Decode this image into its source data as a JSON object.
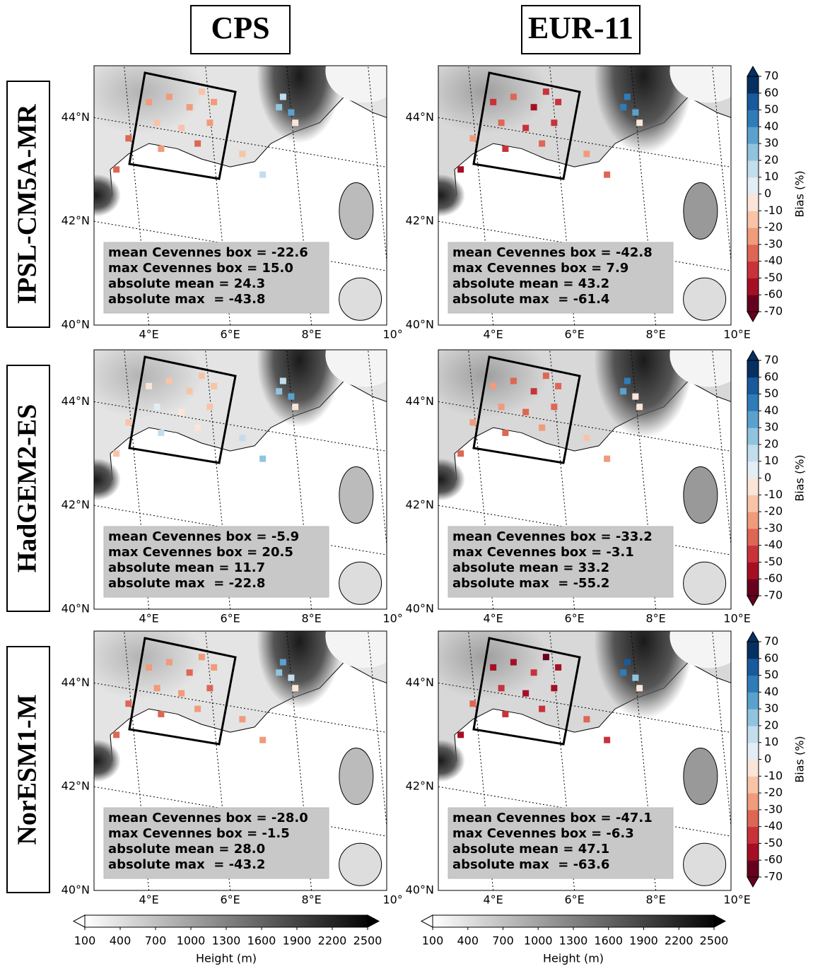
{
  "columns": [
    {
      "title": "CPS",
      "lon_ticks": [
        {
          "value": 4,
          "label": "4°E"
        },
        {
          "value": 6,
          "label": "6°E"
        },
        {
          "value": 8,
          "label": "8°E"
        },
        {
          "value": 10,
          "label": "10°"
        }
      ]
    },
    {
      "title": "EUR-11",
      "lon_ticks": [
        {
          "value": 4,
          "label": "4°E"
        },
        {
          "value": 6,
          "label": "6°E"
        },
        {
          "value": 8,
          "label": "8°E"
        },
        {
          "value": 10,
          "label": "10°E"
        }
      ]
    }
  ],
  "rows": [
    "IPSL-CM5A-MR",
    "HadGEM2-ES",
    "NorESM1-M"
  ],
  "lat_ticks": [
    {
      "value": 44,
      "label": "44°N"
    },
    {
      "value": 42,
      "label": "42°N"
    },
    {
      "value": 40,
      "label": "40°N"
    }
  ],
  "lon_lim": [
    2.65,
    9.85
  ],
  "lat_lim": [
    40,
    45
  ],
  "stations": {
    "lon": [
      4.0,
      4.5,
      5.0,
      5.3,
      5.6,
      4.2,
      4.8,
      5.5,
      3.5,
      4.3,
      5.2,
      3.2,
      6.3,
      6.8,
      7.2,
      7.5,
      7.3,
      7.6
    ],
    "lat": [
      44.3,
      44.4,
      44.2,
      44.5,
      44.3,
      43.9,
      43.8,
      43.9,
      43.6,
      43.4,
      43.5,
      43.0,
      43.3,
      42.9,
      44.2,
      44.1,
      44.4,
      43.9
    ]
  },
  "panels": [
    [
      {
        "stats": [
          "mean Cevennes box = -22.6",
          "max Cevennes box = 15.0",
          "absolute mean = 24.3",
          "absolute max  = -43.8"
        ],
        "bias": [
          -22,
          -25,
          -28,
          -18,
          -30,
          -15,
          -20,
          -24,
          -32,
          -28,
          -35,
          -38,
          -20,
          15,
          25,
          35,
          10,
          -5
        ]
      },
      {
        "stats": [
          "mean Cevennes box = -42.8",
          "max Cevennes box = 7.9",
          "absolute mean = 43.2",
          "absolute max  = -61.4"
        ],
        "bias": [
          -45,
          -40,
          -52,
          -48,
          -45,
          -35,
          -42,
          -50,
          -30,
          -45,
          -40,
          -55,
          -30,
          -38,
          40,
          30,
          45,
          -10
        ]
      }
    ],
    [
      {
        "stats": [
          "mean Cevennes box = -5.9",
          "max Cevennes box = 20.5",
          "absolute mean = 11.7",
          "absolute max  = -22.8"
        ],
        "bias": [
          -8,
          -15,
          -20,
          -12,
          -18,
          5,
          -10,
          -15,
          -12,
          15,
          -8,
          -15,
          10,
          20,
          25,
          30,
          15,
          -5
        ]
      },
      {
        "stats": [
          "mean Cevennes box = -33.2",
          "max Cevennes box = -3.1",
          "absolute mean = 33.2",
          "absolute max  = -55.2"
        ],
        "bias": [
          -30,
          -35,
          -45,
          -40,
          -38,
          -25,
          -35,
          -40,
          -25,
          -35,
          -30,
          -40,
          -20,
          -28,
          35,
          -5,
          40,
          -8
        ]
      }
    ],
    [
      {
        "stats": [
          "mean Cevennes box = -28.0",
          "max Cevennes box = -1.5",
          "absolute mean = 28.0",
          "absolute max  = -43.2"
        ],
        "bias": [
          -25,
          -30,
          -35,
          -28,
          -22,
          -30,
          -25,
          -32,
          -35,
          -40,
          -30,
          -38,
          -22,
          -30,
          20,
          15,
          35,
          -8
        ]
      },
      {
        "stats": [
          "mean Cevennes box = -47.1",
          "max Cevennes box = -6.3",
          "absolute mean = 47.1",
          "absolute max  = -63.6"
        ],
        "bias": [
          -55,
          -60,
          -50,
          -62,
          -55,
          -45,
          -52,
          -58,
          -40,
          -50,
          -42,
          -55,
          -35,
          -42,
          40,
          25,
          50,
          -5
        ]
      }
    ]
  ],
  "bias_colorbar": {
    "label": "Bias (%)",
    "lim": [
      -70,
      70
    ],
    "ticks": [
      70,
      60,
      50,
      40,
      30,
      20,
      10,
      0,
      -10,
      -20,
      -30,
      -40,
      -50,
      -60,
      -70
    ],
    "colors": [
      "#67001f",
      "#a50f24",
      "#c8323a",
      "#de6654",
      "#f09b7b",
      "#f8c4a8",
      "#fbe5d8",
      "#e3eef4",
      "#c2ddec",
      "#90c4de",
      "#5aa2cd",
      "#2f7cb9",
      "#185a9b",
      "#053061"
    ]
  },
  "height_colorbar": {
    "label": "Height (m)",
    "lim": [
      100,
      2500
    ],
    "ticks": [
      100,
      400,
      700,
      1000,
      1300,
      1600,
      1900,
      2200,
      2500
    ]
  }
}
